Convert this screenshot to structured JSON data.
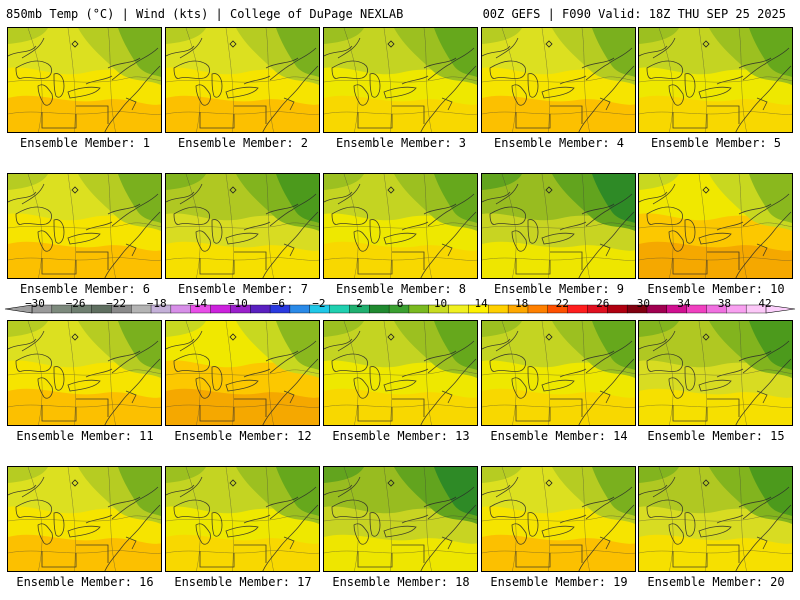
{
  "header": {
    "title": "850mb Temp (°C) | Wind (kts) | College of DuPage NEXLAB",
    "run_info": "00Z GEFS | F090 Valid: 18Z THU SEP 25 2025"
  },
  "colorbar": {
    "labels": [
      "−30",
      "−26",
      "−22",
      "−18",
      "−14",
      "−10",
      "−6",
      "−2",
      "2",
      "6",
      "10",
      "14",
      "18",
      "22",
      "26",
      "30",
      "34",
      "38",
      "42"
    ],
    "colors": [
      "#9a9a9a",
      "#7d8a7d",
      "#6f7f70",
      "#5f6f60",
      "#8a8a8a",
      "#b4b4b4",
      "#c4b0d8",
      "#d78fe8",
      "#e84ee8",
      "#cc22dd",
      "#9a20cc",
      "#5a20c0",
      "#2a3ae0",
      "#2a8ae8",
      "#20c8e8",
      "#20d0b0",
      "#20b070",
      "#208a30",
      "#3aa030",
      "#7aba20",
      "#c8dc20",
      "#f0f020",
      "#fff200",
      "#ffd000",
      "#ffa800",
      "#ff8000",
      "#ff5000",
      "#ff1e1e",
      "#e01020",
      "#b00010",
      "#800010",
      "#a00050",
      "#d01090",
      "#f040c0",
      "#f070e0",
      "#f8a0f0",
      "#fcc8f8"
    ]
  },
  "members": [
    {
      "label": "Ensemble Member: 1",
      "tone": "warm"
    },
    {
      "label": "Ensemble Member: 2",
      "tone": "warm"
    },
    {
      "label": "Ensemble Member: 3",
      "tone": "mid"
    },
    {
      "label": "Ensemble Member: 4",
      "tone": "warm"
    },
    {
      "label": "Ensemble Member: 5",
      "tone": "mid"
    },
    {
      "label": "Ensemble Member: 6",
      "tone": "warm"
    },
    {
      "label": "Ensemble Member: 7",
      "tone": "cool"
    },
    {
      "label": "Ensemble Member: 8",
      "tone": "mid"
    },
    {
      "label": "Ensemble Member: 9",
      "tone": "cold"
    },
    {
      "label": "Ensemble Member: 10",
      "tone": "hot"
    },
    {
      "label": "Ensemble Member: 11",
      "tone": "warm"
    },
    {
      "label": "Ensemble Member: 12",
      "tone": "hot"
    },
    {
      "label": "Ensemble Member: 13",
      "tone": "mid"
    },
    {
      "label": "Ensemble Member: 14",
      "tone": "mid"
    },
    {
      "label": "Ensemble Member: 15",
      "tone": "cool"
    },
    {
      "label": "Ensemble Member: 16",
      "tone": "warm"
    },
    {
      "label": "Ensemble Member: 17",
      "tone": "mid"
    },
    {
      "label": "Ensemble Member: 18",
      "tone": "cold"
    },
    {
      "label": "Ensemble Member: 19",
      "tone": "warm"
    },
    {
      "label": "Ensemble Member: 20",
      "tone": "cool"
    }
  ],
  "palette": {
    "hot": [
      "#f5a800",
      "#fcc800",
      "#f0e800",
      "#c8d820",
      "#8ab81e"
    ],
    "warm": [
      "#fcc000",
      "#f6e400",
      "#dce020",
      "#b6cc22",
      "#7ab01e"
    ],
    "mid": [
      "#f8d800",
      "#eee800",
      "#c4d422",
      "#9cc020",
      "#66a81c"
    ],
    "cool": [
      "#f6e000",
      "#d8dc22",
      "#b0c822",
      "#82b41e",
      "#4c9a1c"
    ],
    "cold": [
      "#eee600",
      "#c8d422",
      "#98bc20",
      "#62a41e",
      "#2e8a26"
    ]
  }
}
